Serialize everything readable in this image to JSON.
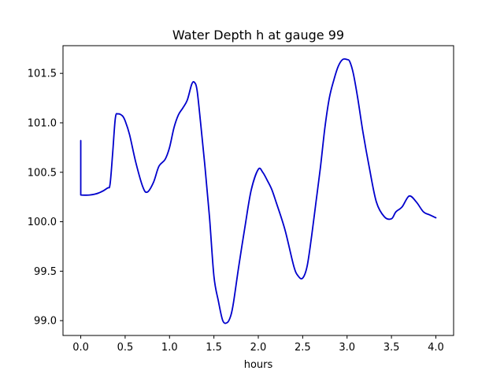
{
  "chart_data": {
    "type": "line",
    "title": "Water Depth h at gauge 99",
    "xlabel": "hours",
    "ylabel": "",
    "xlim": [
      -0.2,
      4.2
    ],
    "ylim": [
      98.85,
      101.78
    ],
    "xticks": [
      0.0,
      0.5,
      1.0,
      1.5,
      2.0,
      2.5,
      3.0,
      3.5,
      4.0
    ],
    "xtick_labels": [
      "0.0",
      "0.5",
      "1.0",
      "1.5",
      "2.0",
      "2.5",
      "3.0",
      "3.5",
      "4.0"
    ],
    "yticks": [
      99.0,
      99.5,
      100.0,
      100.5,
      101.0,
      101.5
    ],
    "ytick_labels": [
      "99.0",
      "99.5",
      "100.0",
      "100.5",
      "101.0",
      "101.5"
    ],
    "grid": false,
    "series": [
      {
        "color": "#0000cc",
        "x": [
          0.0,
          0.0,
          0.1,
          0.2,
          0.3,
          0.33,
          0.36,
          0.39,
          0.42,
          0.47,
          0.5,
          0.55,
          0.62,
          0.7,
          0.75,
          0.82,
          0.88,
          0.95,
          1.0,
          1.05,
          1.1,
          1.15,
          1.2,
          1.25,
          1.28,
          1.31,
          1.35,
          1.4,
          1.45,
          1.5,
          1.55,
          1.6,
          1.65,
          1.69,
          1.72,
          1.78,
          1.85,
          1.92,
          2.0,
          2.05,
          2.1,
          2.15,
          2.2,
          2.3,
          2.4,
          2.45,
          2.5,
          2.55,
          2.6,
          2.65,
          2.7,
          2.75,
          2.8,
          2.85,
          2.9,
          2.95,
          3.0,
          3.03,
          3.07,
          3.12,
          3.18,
          3.25,
          3.33,
          3.42,
          3.5,
          3.55,
          3.62,
          3.7,
          3.78,
          3.86,
          3.93,
          4.0
        ],
        "y": [
          100.82,
          100.27,
          100.27,
          100.29,
          100.34,
          100.38,
          100.7,
          101.05,
          101.09,
          101.07,
          101.02,
          100.88,
          100.6,
          100.35,
          100.3,
          100.4,
          100.56,
          100.63,
          100.75,
          100.95,
          101.08,
          101.15,
          101.23,
          101.39,
          101.41,
          101.33,
          101.0,
          100.55,
          100.05,
          99.45,
          99.2,
          99.0,
          98.98,
          99.05,
          99.18,
          99.55,
          99.95,
          100.32,
          100.53,
          100.5,
          100.42,
          100.33,
          100.2,
          99.92,
          99.55,
          99.45,
          99.43,
          99.55,
          99.85,
          100.2,
          100.55,
          100.95,
          101.25,
          101.43,
          101.57,
          101.64,
          101.64,
          101.62,
          101.5,
          101.25,
          100.9,
          100.55,
          100.2,
          100.05,
          100.03,
          100.1,
          100.15,
          100.26,
          100.2,
          100.1,
          100.07,
          100.04
        ]
      }
    ]
  }
}
